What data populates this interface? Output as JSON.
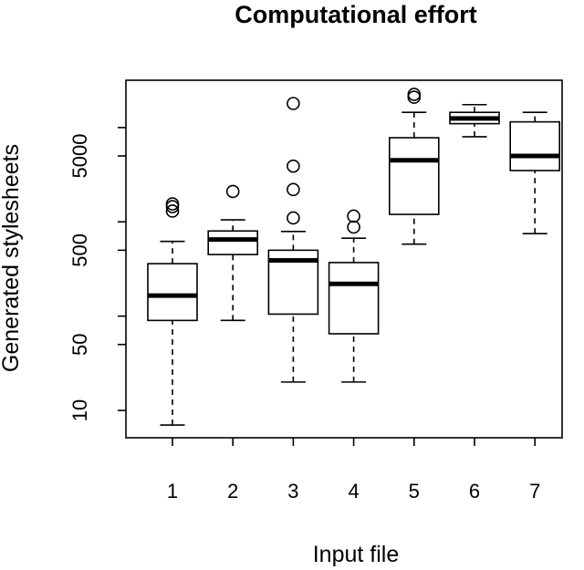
{
  "chart_data": {
    "type": "box",
    "title": "Computational effort",
    "xlabel": "Input file",
    "ylabel": "Generated stylesheets",
    "y_scale": "log",
    "ylim": [
      6,
      22000
    ],
    "grid": false,
    "categories": [
      "1",
      "2",
      "3",
      "4",
      "5",
      "6",
      "7"
    ],
    "y_ticks": [
      10,
      50,
      500,
      5000
    ],
    "y_ticks_unlabeled": [
      100,
      1000,
      10000
    ],
    "boxes": [
      {
        "category": "1",
        "whisker_low": 7,
        "q1": 90,
        "median": 165,
        "q3": 360,
        "whisker_high": 620,
        "outliers": [
          1300,
          1450,
          1550
        ]
      },
      {
        "category": "2",
        "whisker_low": 90,
        "q1": 450,
        "median": 650,
        "q3": 800,
        "whisker_high": 1050,
        "outliers": [
          2100
        ]
      },
      {
        "category": "3",
        "whisker_low": 20,
        "q1": 105,
        "median": 390,
        "q3": 500,
        "whisker_high": 790,
        "outliers": [
          1100,
          2200,
          3900,
          18000
        ]
      },
      {
        "category": "4",
        "whisker_low": 20,
        "q1": 65,
        "median": 220,
        "q3": 370,
        "whisker_high": 670,
        "outliers": [
          880,
          1150
        ]
      },
      {
        "category": "5",
        "whisker_low": 580,
        "q1": 1200,
        "median": 4500,
        "q3": 7800,
        "whisker_high": 14500,
        "outliers": [
          21000,
          22500
        ]
      },
      {
        "category": "6",
        "whisker_low": 8000,
        "q1": 11000,
        "median": 12500,
        "q3": 14500,
        "whisker_high": 17500,
        "outliers": []
      },
      {
        "category": "7",
        "whisker_low": 750,
        "q1": 3500,
        "median": 5000,
        "q3": 11500,
        "whisker_high": 14500,
        "outliers": []
      }
    ]
  }
}
